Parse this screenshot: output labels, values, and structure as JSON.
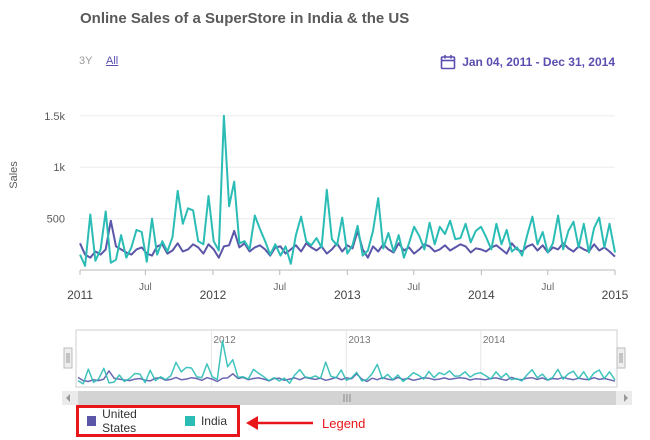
{
  "title": "Online Sales of a SuperStore in India & the US",
  "range_selector": {
    "buttons": [
      "3Y",
      "All"
    ],
    "selected": "All"
  },
  "date_range": "Jan 04, 2011 - Dec 31, 2014",
  "colors": {
    "us": "#5b56a8",
    "india": "#2bbdb5",
    "annotation": "#e8161b"
  },
  "legend": {
    "items": [
      "United States",
      "India"
    ],
    "annotation": "Legend"
  },
  "navigator": {
    "year_labels": [
      "2012",
      "2013",
      "2014"
    ]
  },
  "chart_data": {
    "type": "line",
    "title": "Online Sales of a SuperStore in India & the US",
    "ylabel": "Sales",
    "xlabel": "",
    "ylim": [
      0,
      1800
    ],
    "xlim": [
      "2011-01-04",
      "2014-12-31"
    ],
    "y_ticks": [
      500,
      1000,
      1500
    ],
    "y_tick_labels": [
      "500",
      "1k",
      "1.5k"
    ],
    "x_tick_labels": [
      "2011",
      "Jul",
      "2012",
      "Jul",
      "2013",
      "Jul",
      "2014",
      "Jul",
      "2015"
    ],
    "x_tick_dates": [
      "2011-01-01",
      "2011-07-01",
      "2012-01-01",
      "2012-07-01",
      "2013-01-01",
      "2013-07-01",
      "2014-01-01",
      "2014-07-01",
      "2015-01-01"
    ],
    "x_dates": [
      "2011-01-04",
      "2011-01-18",
      "2011-02-01",
      "2011-02-15",
      "2011-03-01",
      "2011-03-15",
      "2011-03-29",
      "2011-04-12",
      "2011-04-26",
      "2011-05-10",
      "2011-05-24",
      "2011-06-07",
      "2011-06-21",
      "2011-07-05",
      "2011-07-19",
      "2011-08-02",
      "2011-08-16",
      "2011-08-30",
      "2011-09-13",
      "2011-09-27",
      "2011-10-11",
      "2011-10-25",
      "2011-11-08",
      "2011-11-22",
      "2011-12-06",
      "2011-12-20",
      "2012-01-03",
      "2012-01-17",
      "2012-01-31",
      "2012-02-14",
      "2012-02-28",
      "2012-03-13",
      "2012-03-27",
      "2012-04-10",
      "2012-04-24",
      "2012-05-08",
      "2012-05-22",
      "2012-06-05",
      "2012-06-19",
      "2012-07-03",
      "2012-07-17",
      "2012-07-31",
      "2012-08-14",
      "2012-08-28",
      "2012-09-11",
      "2012-09-25",
      "2012-10-09",
      "2012-10-23",
      "2012-11-06",
      "2012-11-20",
      "2012-12-04",
      "2012-12-18",
      "2013-01-01",
      "2013-01-15",
      "2013-01-29",
      "2013-02-12",
      "2013-02-26",
      "2013-03-12",
      "2013-03-26",
      "2013-04-09",
      "2013-04-23",
      "2013-05-07",
      "2013-05-21",
      "2013-06-04",
      "2013-06-18",
      "2013-07-02",
      "2013-07-16",
      "2013-07-30",
      "2013-08-13",
      "2013-08-27",
      "2013-09-10",
      "2013-09-24",
      "2013-10-08",
      "2013-10-22",
      "2013-11-05",
      "2013-11-19",
      "2013-12-03",
      "2013-12-17",
      "2013-12-31",
      "2014-01-14",
      "2014-01-28",
      "2014-02-11",
      "2014-02-25",
      "2014-03-11",
      "2014-03-25",
      "2014-04-08",
      "2014-04-22",
      "2014-05-06",
      "2014-05-20",
      "2014-06-03",
      "2014-06-17",
      "2014-07-01",
      "2014-07-15",
      "2014-07-29",
      "2014-08-12",
      "2014-08-26",
      "2014-09-09",
      "2014-09-23",
      "2014-10-07",
      "2014-10-21",
      "2014-11-04",
      "2014-11-18",
      "2014-12-02",
      "2014-12-16",
      "2014-12-31"
    ],
    "series": [
      {
        "name": "United States",
        "values": [
          260,
          150,
          120,
          180,
          150,
          200,
          480,
          230,
          200,
          170,
          150,
          200,
          220,
          160,
          140,
          230,
          250,
          160,
          190,
          260,
          180,
          200,
          250,
          220,
          160,
          250,
          200,
          120,
          230,
          240,
          380,
          220,
          260,
          180,
          220,
          240,
          200,
          140,
          220,
          230,
          160,
          200,
          240,
          180,
          260,
          220,
          190,
          230,
          160,
          200,
          260,
          180,
          240,
          210,
          380,
          200,
          120,
          230,
          180,
          250,
          200,
          170,
          260,
          190,
          220,
          160,
          200,
          250,
          230,
          180,
          200,
          240,
          190,
          220,
          250,
          230,
          170,
          210,
          200,
          180,
          220,
          240,
          200,
          160,
          260,
          200,
          180,
          230,
          250,
          190,
          240,
          170,
          220,
          200,
          260,
          210,
          180,
          230,
          200,
          180,
          250,
          190,
          220,
          180,
          130
        ]
      },
      {
        "name": "India",
        "values": [
          150,
          40,
          540,
          90,
          200,
          570,
          70,
          100,
          340,
          120,
          220,
          390,
          370,
          80,
          500,
          150,
          280,
          180,
          320,
          770,
          450,
          600,
          580,
          280,
          250,
          720,
          280,
          190,
          1500,
          620,
          860,
          260,
          280,
          200,
          530,
          400,
          280,
          150,
          250,
          140,
          230,
          60,
          340,
          520,
          280,
          240,
          310,
          220,
          780,
          300,
          240,
          510,
          160,
          240,
          430,
          140,
          190,
          380,
          700,
          210,
          360,
          180,
          340,
          120,
          260,
          420,
          330,
          200,
          460,
          250,
          420,
          350,
          480,
          300,
          310,
          450,
          270,
          380,
          420,
          320,
          200,
          450,
          250,
          390,
          180,
          220,
          140,
          340,
          520,
          250,
          370,
          170,
          260,
          530,
          200,
          380,
          470,
          220,
          450,
          170,
          410,
          510,
          220,
          450,
          170
        ]
      }
    ]
  }
}
